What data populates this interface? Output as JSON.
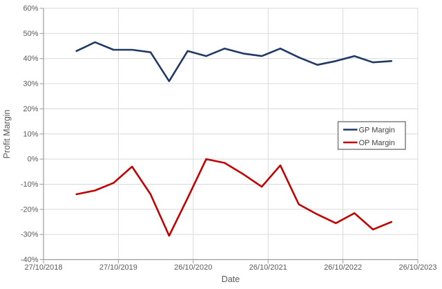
{
  "chart_data": {
    "type": "line",
    "title": "",
    "xlabel": "Date",
    "ylabel": "Profit Margin",
    "grid": true,
    "x_axis": {
      "tick_labels": [
        "27/10/2018",
        "27/10/2019",
        "26/10/2020",
        "26/10/2021",
        "26/10/2022",
        "26/10/2023"
      ],
      "tick_positions_years": [
        0,
        1,
        2,
        3,
        4,
        5
      ]
    },
    "y_axis": {
      "tick_labels": [
        "60%",
        "50%",
        "40%",
        "30%",
        "20%",
        "10%",
        "0%",
        "-10%",
        "-20%",
        "-30%",
        "-40%"
      ],
      "tick_values": [
        60,
        50,
        40,
        30,
        20,
        10,
        0,
        -10,
        -20,
        -30,
        -40
      ],
      "ylim": [
        -40,
        60
      ],
      "unit": "%"
    },
    "legend": {
      "position": "right-middle",
      "entries": [
        "GP Margin",
        "OP Margin"
      ]
    },
    "x_years_from_start": [
      0.44,
      0.688,
      0.935,
      1.183,
      1.43,
      1.678,
      1.925,
      2.173,
      2.42,
      2.668,
      2.915,
      3.163,
      3.41,
      3.658,
      3.905,
      4.153,
      4.4,
      4.648
    ],
    "dates_approx": [
      "2019-04",
      "2019-07",
      "2019-10",
      "2020-01",
      "2020-04",
      "2020-07",
      "2020-10",
      "2021-01",
      "2021-04",
      "2021-07",
      "2021-10",
      "2022-01",
      "2022-04",
      "2022-07",
      "2022-10",
      "2023-01",
      "2023-04",
      "2023-07"
    ],
    "series": [
      {
        "name": "GP Margin",
        "color": "#1f3864",
        "values": [
          43,
          46.5,
          43.5,
          43.5,
          42.5,
          31,
          43,
          41,
          44,
          42,
          41,
          44,
          40.5,
          37.5,
          39,
          41,
          38.5,
          39
        ]
      },
      {
        "name": "OP Margin",
        "color": "#c00000",
        "values": [
          -14,
          -12.5,
          -9.5,
          -3,
          -14,
          -30.5,
          -15.5,
          0,
          -1.5,
          -6,
          -11,
          -2.5,
          -18,
          -22,
          -25.5,
          -21.5,
          -28,
          -25
        ]
      }
    ]
  },
  "colors": {
    "background": "#ffffff",
    "gp_line": "#1f3864",
    "op_line": "#c00000",
    "gridline": "#d9d9d9",
    "axis_line": "#9b9b9b",
    "tick_text": "#595959",
    "axis_title_text": "#595959",
    "legend_border": "#7f7f7f",
    "legend_text": "#404040"
  }
}
